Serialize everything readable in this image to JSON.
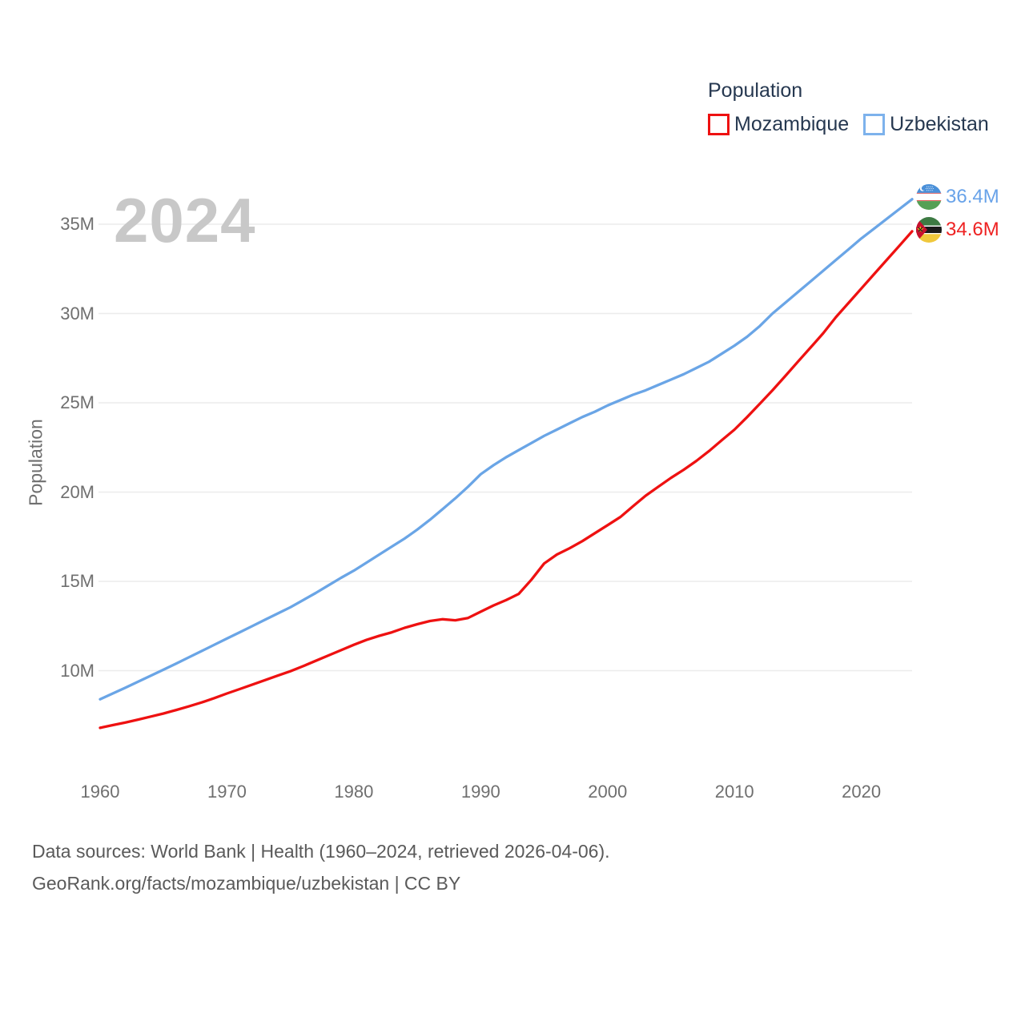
{
  "legend": {
    "title": "Population",
    "items": [
      {
        "label": "Mozambique",
        "color": "#ee1111"
      },
      {
        "label": "Uzbekistan",
        "color": "#6aa5e6"
      }
    ]
  },
  "watermark": "2024",
  "end_labels": {
    "uzbekistan": {
      "value": "36.4M",
      "flag_icon": "uzbekistan-flag",
      "color": "#69a3e9"
    },
    "mozambique": {
      "value": "34.6M",
      "flag_icon": "mozambique-flag",
      "color": "#ee2222"
    }
  },
  "footer": {
    "line1": "Data sources: World Bank | Health (1960–2024, retrieved 2026-04-06).",
    "line2": "GeoRank.org/facts/mozambique/uzbekistan | CC BY"
  },
  "chart_data": {
    "type": "line",
    "title": "Population",
    "xlabel": "",
    "ylabel": "Population",
    "x_tick_years": [
      1960,
      1970,
      1980,
      1990,
      2000,
      2010,
      2020
    ],
    "y_tick_values": [
      10,
      15,
      20,
      25,
      30,
      35
    ],
    "y_tick_labels": [
      "10M",
      "15M",
      "20M",
      "25M",
      "30M",
      "35M"
    ],
    "xlim": [
      1960,
      2024
    ],
    "ylim_millions": [
      6.5,
      37.5
    ],
    "grid": "horizontal-only",
    "legend_position": "top-right",
    "x": [
      1960,
      1961,
      1962,
      1963,
      1964,
      1965,
      1966,
      1967,
      1968,
      1969,
      1970,
      1971,
      1972,
      1973,
      1974,
      1975,
      1976,
      1977,
      1978,
      1979,
      1980,
      1981,
      1982,
      1983,
      1984,
      1985,
      1986,
      1987,
      1988,
      1989,
      1990,
      1991,
      1992,
      1993,
      1994,
      1995,
      1996,
      1997,
      1998,
      1999,
      2000,
      2001,
      2002,
      2003,
      2004,
      2005,
      2006,
      2007,
      2008,
      2009,
      2010,
      2011,
      2012,
      2013,
      2014,
      2015,
      2016,
      2017,
      2018,
      2019,
      2020,
      2021,
      2022,
      2023,
      2024
    ],
    "series": [
      {
        "name": "Mozambique",
        "color": "#ee1111",
        "unit": "millions",
        "values": [
          6.8,
          6.95,
          7.1,
          7.26,
          7.43,
          7.6,
          7.8,
          8.0,
          8.22,
          8.46,
          8.72,
          8.97,
          9.22,
          9.47,
          9.72,
          9.97,
          10.25,
          10.55,
          10.85,
          11.15,
          11.45,
          11.72,
          11.95,
          12.15,
          12.4,
          12.6,
          12.78,
          12.88,
          12.82,
          12.95,
          13.3,
          13.65,
          13.95,
          14.3,
          15.1,
          16.0,
          16.5,
          16.85,
          17.25,
          17.7,
          18.15,
          18.6,
          19.2,
          19.8,
          20.3,
          20.8,
          21.25,
          21.75,
          22.3,
          22.9,
          23.5,
          24.2,
          24.95,
          25.7,
          26.5,
          27.3,
          28.1,
          28.9,
          29.8,
          30.6,
          31.4,
          32.2,
          33.0,
          33.8,
          34.6
        ],
        "end_value_label": "34.6M"
      },
      {
        "name": "Uzbekistan",
        "color": "#6aa5e6",
        "unit": "millions",
        "values": [
          8.4,
          8.72,
          9.05,
          9.38,
          9.72,
          10.06,
          10.4,
          10.75,
          11.1,
          11.45,
          11.8,
          12.15,
          12.5,
          12.85,
          13.2,
          13.55,
          13.95,
          14.35,
          14.78,
          15.2,
          15.6,
          16.05,
          16.5,
          16.95,
          17.4,
          17.9,
          18.45,
          19.05,
          19.65,
          20.3,
          21.0,
          21.5,
          21.95,
          22.35,
          22.75,
          23.15,
          23.5,
          23.85,
          24.2,
          24.5,
          24.85,
          25.15,
          25.45,
          25.7,
          26.0,
          26.3,
          26.6,
          26.95,
          27.3,
          27.75,
          28.2,
          28.7,
          29.3,
          30.0,
          30.6,
          31.2,
          31.8,
          32.4,
          33.0,
          33.6,
          34.2,
          34.75,
          35.3,
          35.85,
          36.4
        ],
        "end_value_label": "36.4M"
      }
    ]
  }
}
